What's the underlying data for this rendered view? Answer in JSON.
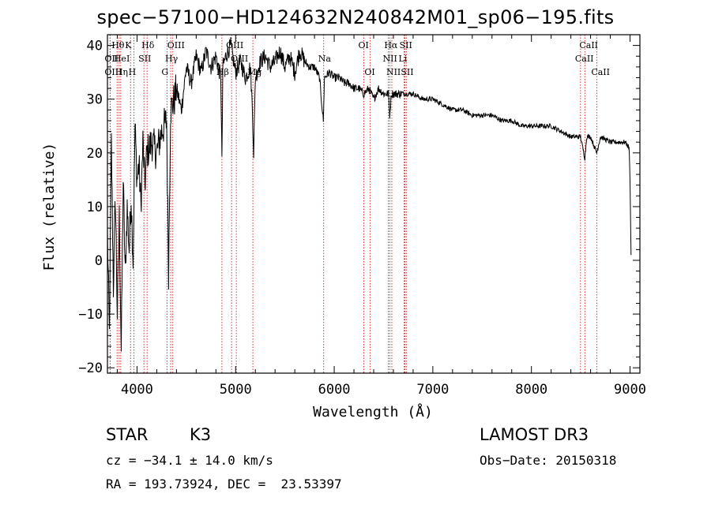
{
  "page": {
    "title": "spec−57100−HD124632N240842M01_sp06−195.fits"
  },
  "info": {
    "class": "STAR",
    "subclass": "K3",
    "survey": "LAMOST DR3",
    "cz": "cz = −34.1 ± 14.0 km/s",
    "obs_date": "Obs−Date: 20150318",
    "coords": "RA = 193.73924, DEC =  23.53397"
  },
  "chart_data": {
    "type": "line",
    "title": "spec−57100−HD124632N240842M01_sp06−195.fits",
    "xlabel": "Wavelength (Å)",
    "ylabel": "Flux (relative)",
    "xlim": [
      3700,
      9100
    ],
    "ylim": [
      -21,
      42
    ],
    "xticks": [
      4000,
      5000,
      6000,
      7000,
      8000,
      9000
    ],
    "yticks": [
      -20,
      -10,
      0,
      10,
      20,
      30,
      40
    ],
    "xtick_labels": [
      "4000",
      "5000",
      "6000",
      "7000",
      "8000",
      "9000"
    ],
    "ytick_labels": [
      "−20",
      "−10",
      "0",
      "10",
      "20",
      "30",
      "40"
    ],
    "line_color": "#000000",
    "marker_color": "#cc2222",
    "series": [
      {
        "name": "flux",
        "x": [
          3700,
          3720,
          3740,
          3760,
          3780,
          3800,
          3820,
          3840,
          3860,
          3880,
          3900,
          3920,
          3940,
          3960,
          3980,
          4000,
          4020,
          4040,
          4060,
          4080,
          4100,
          4150,
          4200,
          4250,
          4300,
          4320,
          4340,
          4380,
          4400,
          4450,
          4500,
          4550,
          4600,
          4650,
          4700,
          4750,
          4800,
          4850,
          4861,
          4870,
          4900,
          4950,
          5000,
          5050,
          5100,
          5150,
          5170,
          5183,
          5200,
          5250,
          5300,
          5350,
          5400,
          5450,
          5500,
          5550,
          5600,
          5650,
          5700,
          5750,
          5800,
          5850,
          5890,
          5900,
          5950,
          6000,
          6050,
          6100,
          6150,
          6200,
          6250,
          6300,
          6350,
          6400,
          6450,
          6500,
          6550,
          6563,
          6580,
          6600,
          6650,
          6700,
          6750,
          6800,
          6900,
          7000,
          7100,
          7200,
          7300,
          7400,
          7500,
          7600,
          7700,
          7800,
          7900,
          8000,
          8100,
          8200,
          8300,
          8400,
          8498,
          8520,
          8542,
          8560,
          8600,
          8662,
          8700,
          8800,
          8900,
          8950,
          8990,
          9000,
          9010
        ],
        "y": [
          5,
          -14,
          22,
          -5,
          12,
          -10,
          8,
          -17,
          15,
          -3,
          10,
          2,
          12,
          0,
          25,
          15,
          18,
          10,
          22,
          14,
          20,
          22,
          20,
          24,
          26,
          -2,
          28,
          30,
          32,
          28,
          36,
          33,
          38,
          35,
          39,
          36,
          38,
          34,
          18,
          36,
          38,
          40,
          35,
          37,
          34,
          36,
          28,
          20,
          34,
          37,
          38,
          36,
          37,
          39,
          36,
          38,
          35,
          39,
          37,
          36,
          36,
          34,
          26,
          34,
          35,
          34,
          34,
          33,
          33,
          32,
          32,
          31,
          32,
          30,
          32,
          31,
          31,
          27,
          31,
          31,
          31,
          31,
          31,
          31,
          30,
          30,
          29,
          28,
          28,
          27,
          27,
          27,
          26,
          26,
          25,
          25,
          25,
          25,
          24,
          23,
          23,
          21,
          19,
          23,
          23,
          20,
          23,
          22,
          22,
          22,
          21,
          15,
          1
        ]
      }
    ],
    "spectral_lines": [
      {
        "label": "Hθ",
        "wavelength": 3798,
        "row": 1
      },
      {
        "label": "OII",
        "wavelength": 3727,
        "row": 2
      },
      {
        "label": "HeI",
        "wavelength": 3819,
        "row": 2
      },
      {
        "label": "OIII",
        "wavelength": 3727,
        "row": 3
      },
      {
        "label": "Hη",
        "wavelength": 3835,
        "row": 3
      },
      {
        "label": "K",
        "wavelength": 3934,
        "row": 1
      },
      {
        "label": "H",
        "wavelength": 3969,
        "row": 3
      },
      {
        "label": "SII",
        "wavelength": 4070,
        "row": 2
      },
      {
        "label": "Hδ",
        "wavelength": 4102,
        "row": 1
      },
      {
        "label": "OIII",
        "wavelength": 4363,
        "row": 1
      },
      {
        "label": "Hγ",
        "wavelength": 4341,
        "row": 2
      },
      {
        "label": "G",
        "wavelength": 4304,
        "row": 3
      },
      {
        "label": "OIII",
        "wavelength": 4959,
        "row": 1
      },
      {
        "label": "OIII",
        "wavelength": 5007,
        "row": 2
      },
      {
        "label": "Hβ",
        "wavelength": 4861,
        "row": 3
      },
      {
        "label": "Mg",
        "wavelength": 5175,
        "row": 3
      },
      {
        "label": "Na",
        "wavelength": 5893,
        "row": 2
      },
      {
        "label": "OI",
        "wavelength": 6300,
        "row": 1
      },
      {
        "label": "OI",
        "wavelength": 6363,
        "row": 3
      },
      {
        "label": "Hα",
        "wavelength": 6563,
        "row": 1
      },
      {
        "label": "NII",
        "wavelength": 6548,
        "row": 2
      },
      {
        "label": "NII",
        "wavelength": 6584,
        "row": 3
      },
      {
        "label": "SII",
        "wavelength": 6717,
        "row": 1
      },
      {
        "label": "Li",
        "wavelength": 6708,
        "row": 2
      },
      {
        "label": "SII",
        "wavelength": 6731,
        "row": 3
      },
      {
        "label": "CaII",
        "wavelength": 8542,
        "row": 1
      },
      {
        "label": "CaII",
        "wavelength": 8498,
        "row": 2
      },
      {
        "label": "CaII",
        "wavelength": 8662,
        "row": 3
      }
    ]
  }
}
